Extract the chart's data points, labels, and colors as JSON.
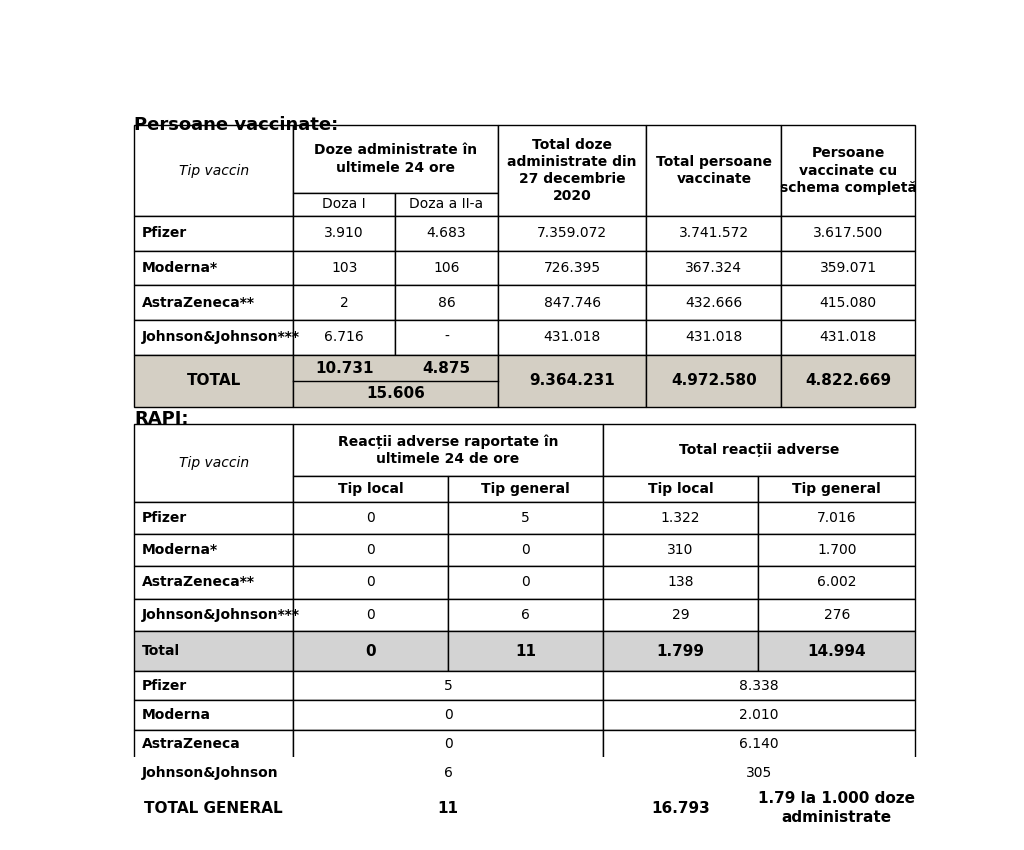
{
  "bg_color": "#ffffff",
  "total_row_bg": "#d4cfc4",
  "white_bg": "#ffffff",
  "light_gray_bg": "#d3d3d3",
  "title1": "Persoane vaccinate:",
  "title2": "RAPI:",
  "table1_headers": [
    "Tip vaccin",
    "Doze administrate în\nultimele 24 ore",
    "Total doze\nadministrate din\n27 decembrie\n2020",
    "Total persoane\nvaccinate",
    "Persoane\nvaccinate cu\nschema completă"
  ],
  "table1_subheaders": [
    "Doza I",
    "Doza a II-a"
  ],
  "table1_rows": [
    [
      "Pfizer",
      "3.910",
      "4.683",
      "7.359.072",
      "3.741.572",
      "3.617.500"
    ],
    [
      "Moderna*",
      "103",
      "106",
      "726.395",
      "367.324",
      "359.071"
    ],
    [
      "AstraZeneca**",
      "2",
      "86",
      "847.746",
      "432.666",
      "415.080"
    ],
    [
      "Johnson&Johnson***",
      "6.716",
      "-",
      "431.018",
      "431.018",
      "431.018"
    ]
  ],
  "table1_total": [
    "TOTAL",
    "10.731",
    "4.875",
    "15.606",
    "9.364.231",
    "4.972.580",
    "4.822.669"
  ],
  "table2_headers": [
    "Tip vaccin",
    "Reacții adverse raportate în\nultimele 24 de ore",
    "Total reacții adverse"
  ],
  "table2_subheaders": [
    "Tip local",
    "Tip general",
    "Tip local",
    "Tip general"
  ],
  "table2_rows": [
    [
      "Pfizer",
      "0",
      "5",
      "1.322",
      "7.016"
    ],
    [
      "Moderna*",
      "0",
      "0",
      "310",
      "1.700"
    ],
    [
      "AstraZeneca**",
      "0",
      "0",
      "138",
      "6.002"
    ],
    [
      "Johnson&Johnson***",
      "0",
      "6",
      "29",
      "276"
    ]
  ],
  "table2_total": [
    "Total",
    "0",
    "11",
    "1.799",
    "14.994"
  ],
  "table2_rows2": [
    [
      "Pfizer",
      "5",
      "8.338"
    ],
    [
      "Moderna",
      "0",
      "2.010"
    ],
    [
      "AstraZeneca",
      "0",
      "6.140"
    ],
    [
      "Johnson&Johnson",
      "6",
      "305"
    ]
  ],
  "table2_total_general": [
    "TOTAL GENERAL",
    "11",
    "16.793",
    "1.79 la 1.000 doze\nadministrate"
  ]
}
